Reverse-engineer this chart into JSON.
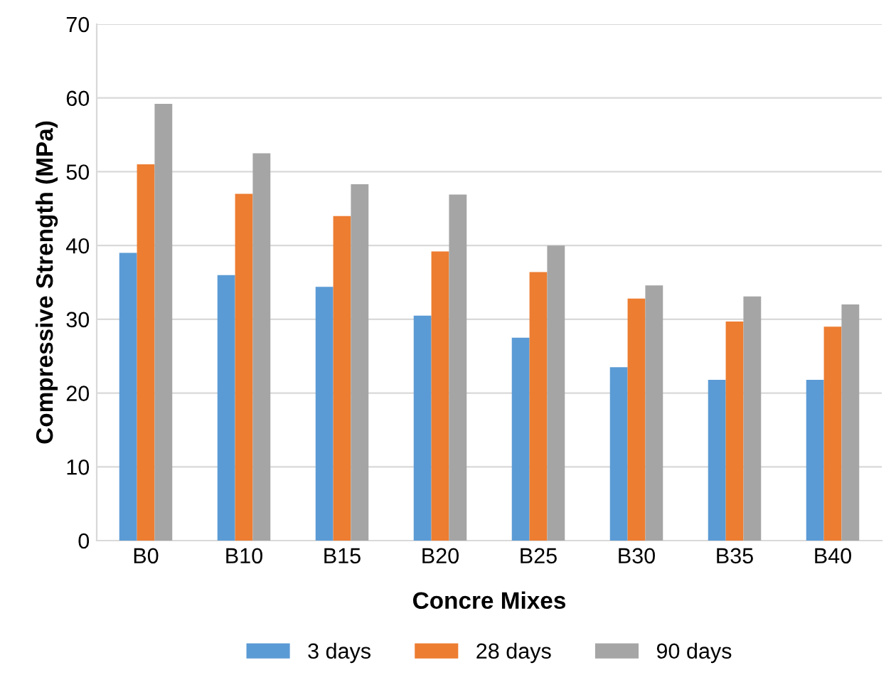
{
  "chart_data": {
    "type": "bar",
    "xlabel": "Concre Mixes",
    "ylabel": "Compressive Strength (MPa)",
    "categories": [
      "B0",
      "B10",
      "B15",
      "B20",
      "B25",
      "B30",
      "B35",
      "B40"
    ],
    "series": [
      {
        "name": "3 days",
        "color": "#5b9bd5",
        "values": [
          39,
          36,
          34.4,
          30.5,
          27.5,
          23.5,
          21.8,
          21.8
        ]
      },
      {
        "name": "28 days",
        "color": "#ed7d31",
        "values": [
          51,
          47,
          44,
          39.2,
          36.4,
          32.8,
          29.7,
          29
        ]
      },
      {
        "name": "90 days",
        "color": "#a5a5a5",
        "values": [
          59.2,
          52.5,
          48.3,
          46.9,
          40,
          34.6,
          33.1,
          32
        ]
      }
    ],
    "ylim": [
      0,
      70
    ],
    "yticks": [
      0,
      10,
      20,
      30,
      40,
      50,
      60,
      70
    ],
    "grid": "y",
    "legend": "bottom"
  }
}
